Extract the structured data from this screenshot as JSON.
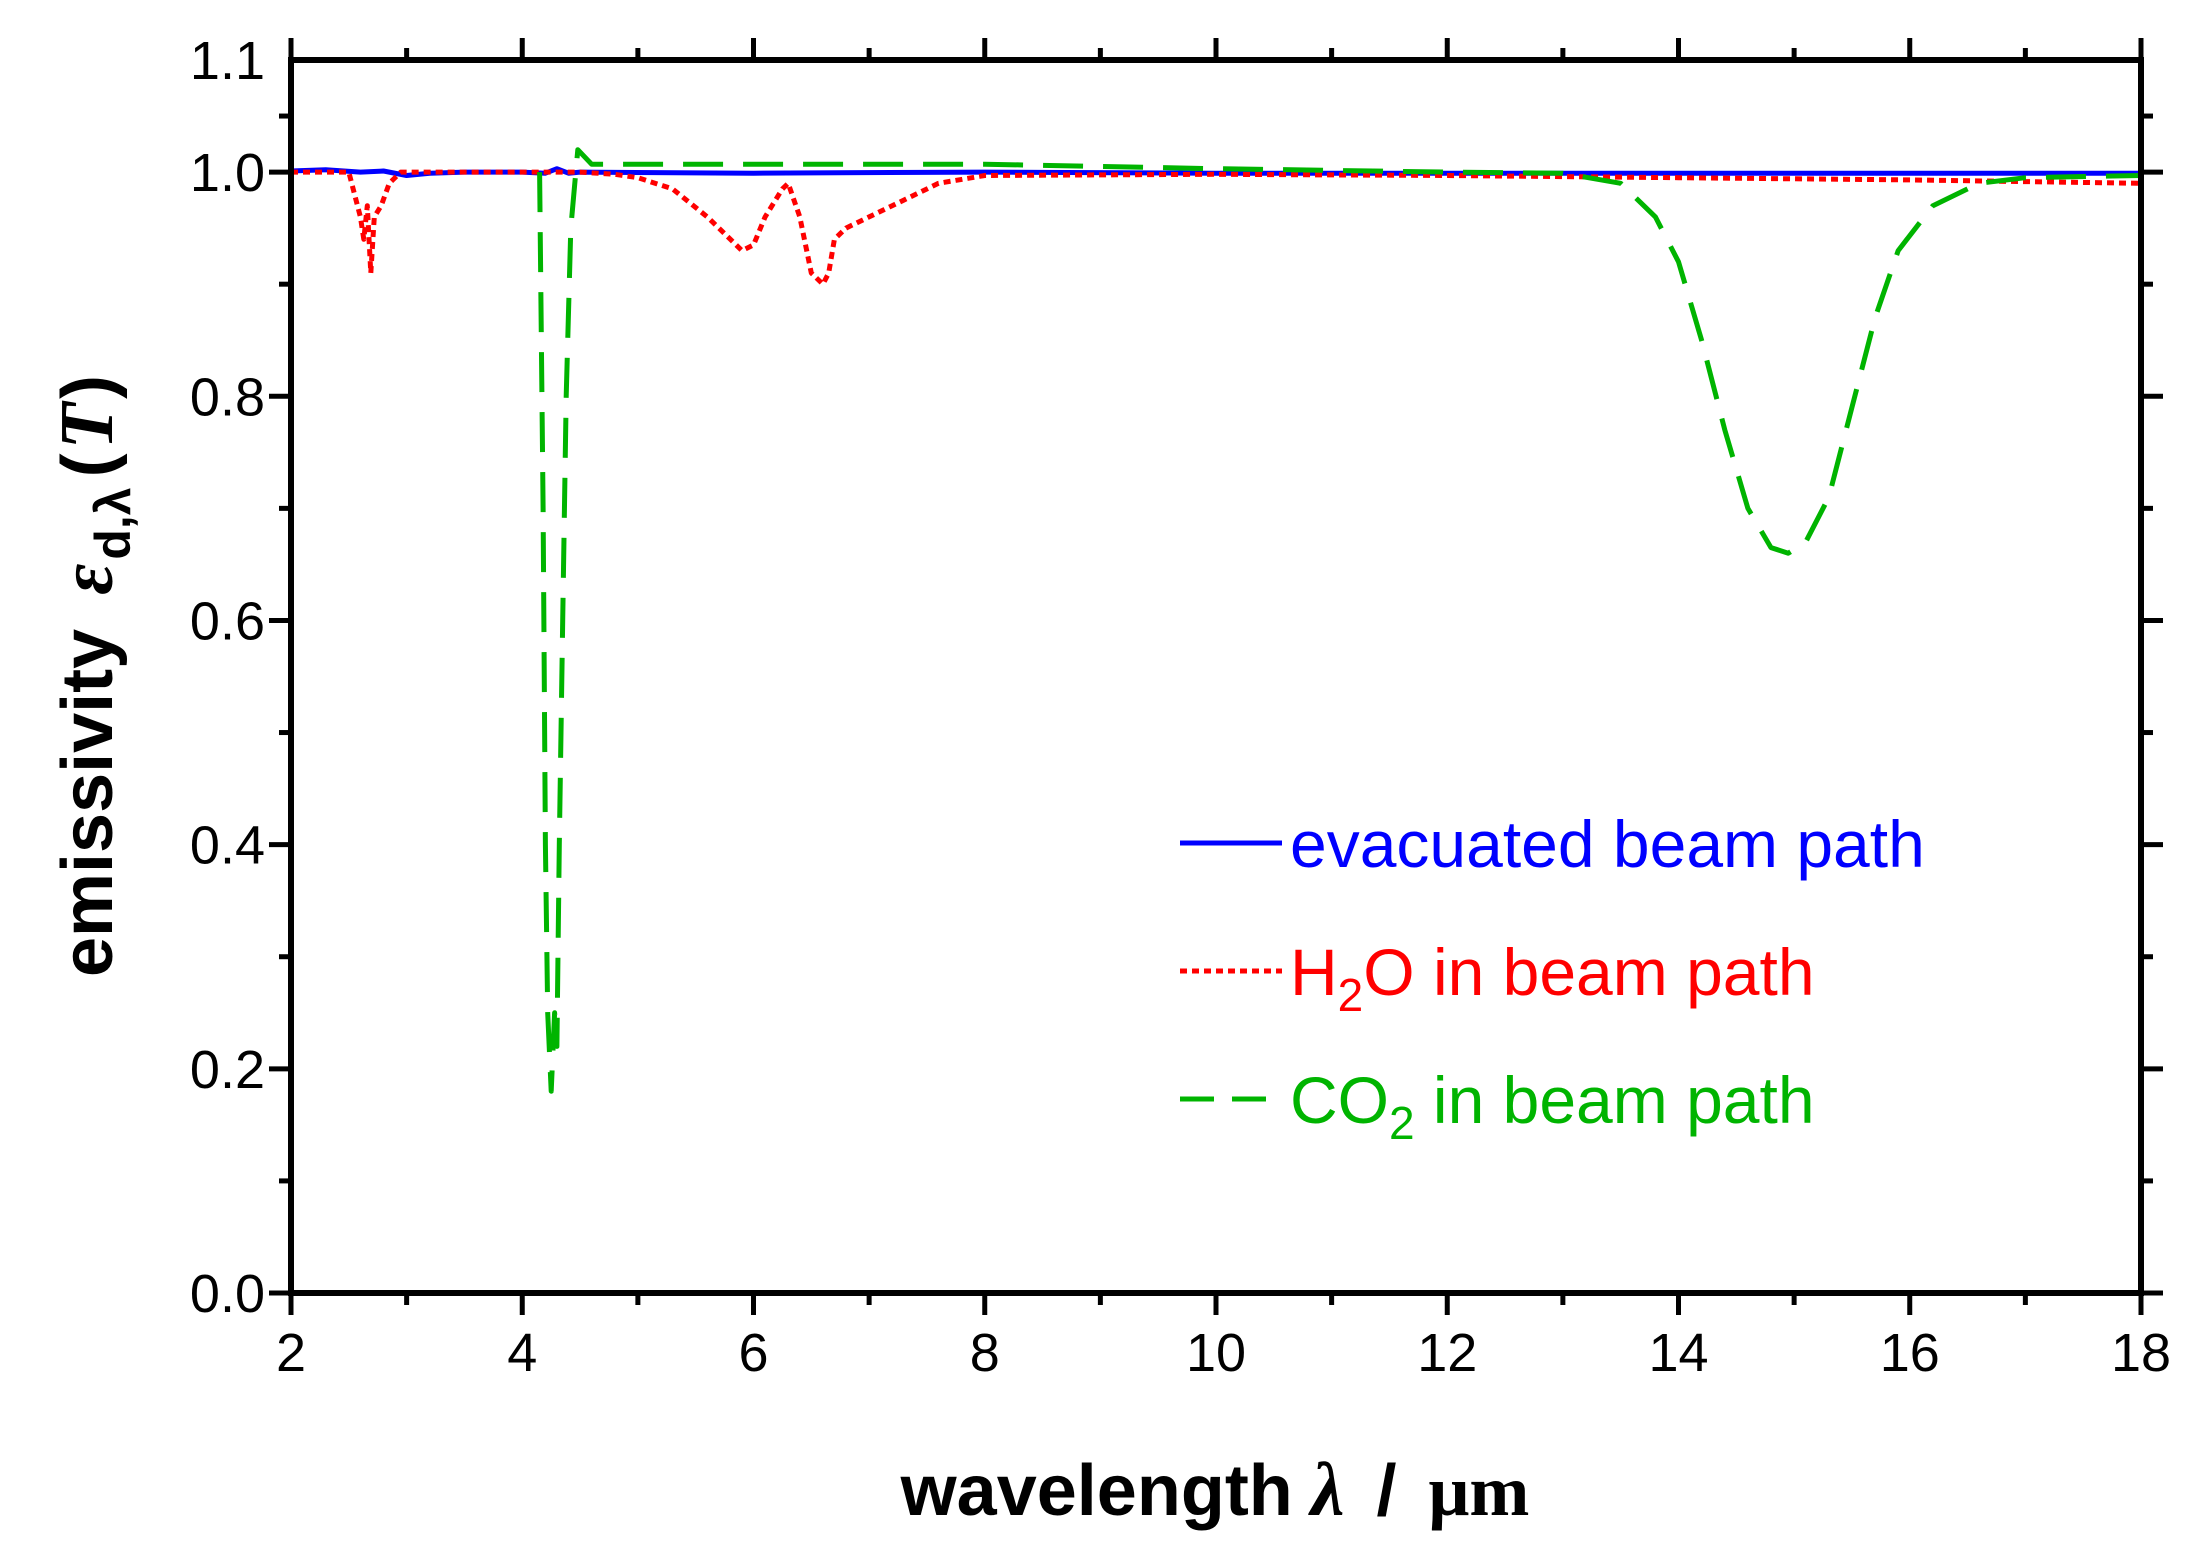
{
  "chart_data": {
    "type": "line",
    "xlabel": {
      "text": "wavelength",
      "symbol": "λ",
      "separator": "/",
      "unit": "μm"
    },
    "ylabel": {
      "text": "emissivity",
      "symbol": "ε",
      "subscript": "d,λ",
      "argument_open": "(",
      "argument": "T",
      "argument_close": ")"
    },
    "xlim": [
      2,
      18
    ],
    "ylim": [
      0,
      1.1
    ],
    "x_ticks": [
      2,
      4,
      6,
      8,
      10,
      12,
      14,
      16,
      18
    ],
    "y_ticks": [
      0.0,
      0.2,
      0.4,
      0.6,
      0.8,
      1.0
    ],
    "x_tick_labels": [
      "2",
      "4",
      "6",
      "8",
      "10",
      "12",
      "14",
      "16",
      "18"
    ],
    "y_tick_labels": [
      "0.0",
      "0.2",
      "0.4",
      "0.6",
      "0.8",
      "1.0",
      "1.1"
    ],
    "y_label_positions": [
      0.0,
      0.2,
      0.4,
      0.6,
      0.8,
      1.0,
      1.1
    ],
    "grid": false,
    "legend_placement": "right-center",
    "series": [
      {
        "name": "evacuated beam path",
        "label_parts": [
          "evacuated beam path"
        ],
        "color": "#0000ff",
        "style": "solid",
        "points": [
          [
            2.0,
            1.001
          ],
          [
            2.3,
            1.002
          ],
          [
            2.6,
            1.0
          ],
          [
            2.8,
            1.001
          ],
          [
            3.0,
            0.997
          ],
          [
            3.2,
            0.999
          ],
          [
            3.5,
            1.0
          ],
          [
            4.0,
            1.0
          ],
          [
            4.2,
            0.999
          ],
          [
            4.3,
            1.003
          ],
          [
            4.4,
            0.999
          ],
          [
            4.5,
            1.0
          ],
          [
            6.0,
            0.999
          ],
          [
            8.0,
            1.0
          ],
          [
            10.0,
            0.999
          ],
          [
            12.0,
            0.999
          ],
          [
            14.0,
            0.999
          ],
          [
            16.0,
            0.999
          ],
          [
            18.0,
            0.999
          ]
        ]
      },
      {
        "name": "H2O in beam path",
        "label_parts": [
          "H",
          "2",
          "O in beam path"
        ],
        "color": "#ff0000",
        "style": "dotted",
        "points": [
          [
            2.0,
            1.0
          ],
          [
            2.5,
            1.0
          ],
          [
            2.55,
            0.98
          ],
          [
            2.6,
            0.96
          ],
          [
            2.63,
            0.94
          ],
          [
            2.66,
            0.97
          ],
          [
            2.69,
            0.91
          ],
          [
            2.72,
            0.96
          ],
          [
            2.78,
            0.97
          ],
          [
            2.85,
            0.99
          ],
          [
            2.95,
            1.0
          ],
          [
            4.5,
            1.0
          ],
          [
            4.8,
            0.998
          ],
          [
            5.0,
            0.995
          ],
          [
            5.3,
            0.985
          ],
          [
            5.6,
            0.96
          ],
          [
            5.8,
            0.94
          ],
          [
            5.9,
            0.93
          ],
          [
            6.0,
            0.935
          ],
          [
            6.1,
            0.96
          ],
          [
            6.25,
            0.985
          ],
          [
            6.3,
            0.99
          ],
          [
            6.4,
            0.96
          ],
          [
            6.5,
            0.91
          ],
          [
            6.6,
            0.9
          ],
          [
            6.65,
            0.91
          ],
          [
            6.7,
            0.94
          ],
          [
            6.8,
            0.95
          ],
          [
            7.0,
            0.96
          ],
          [
            7.3,
            0.975
          ],
          [
            7.6,
            0.99
          ],
          [
            8.0,
            0.997
          ],
          [
            10.0,
            0.998
          ],
          [
            12.0,
            0.997
          ],
          [
            14.0,
            0.995
          ],
          [
            16.0,
            0.993
          ],
          [
            18.0,
            0.99
          ]
        ]
      },
      {
        "name": "CO2 in beam path",
        "label_parts": [
          "CO",
          "2",
          " in beam path"
        ],
        "color": "#00b400",
        "style": "dashed",
        "points": [
          [
            4.15,
            1.0
          ],
          [
            4.18,
            0.7
          ],
          [
            4.2,
            0.4
          ],
          [
            4.22,
            0.25
          ],
          [
            4.25,
            0.18
          ],
          [
            4.28,
            0.25
          ],
          [
            4.3,
            0.22
          ],
          [
            4.32,
            0.4
          ],
          [
            4.35,
            0.6
          ],
          [
            4.38,
            0.8
          ],
          [
            4.42,
            0.95
          ],
          [
            4.48,
            1.02
          ],
          [
            4.6,
            1.007
          ],
          [
            6.0,
            1.007
          ],
          [
            8.0,
            1.007
          ],
          [
            10.0,
            1.003
          ],
          [
            12.0,
            1.0
          ],
          [
            13.0,
            0.999
          ],
          [
            13.5,
            0.99
          ],
          [
            13.8,
            0.96
          ],
          [
            14.0,
            0.92
          ],
          [
            14.2,
            0.85
          ],
          [
            14.4,
            0.77
          ],
          [
            14.6,
            0.7
          ],
          [
            14.8,
            0.665
          ],
          [
            14.95,
            0.66
          ],
          [
            15.1,
            0.67
          ],
          [
            15.3,
            0.71
          ],
          [
            15.5,
            0.79
          ],
          [
            15.7,
            0.87
          ],
          [
            15.9,
            0.93
          ],
          [
            16.2,
            0.97
          ],
          [
            16.6,
            0.99
          ],
          [
            17.0,
            0.995
          ],
          [
            18.0,
            0.997
          ]
        ]
      }
    ]
  }
}
